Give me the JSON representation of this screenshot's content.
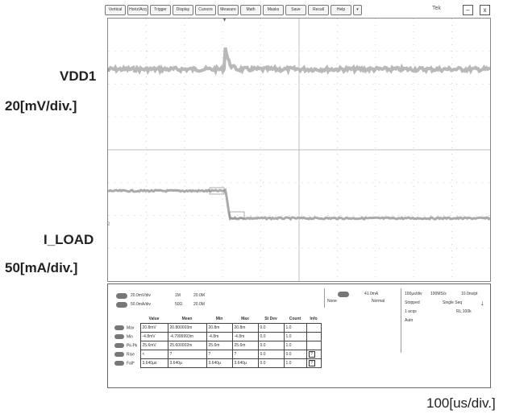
{
  "labels": {
    "ch1_name": "VDD1",
    "ch1_scale": "20[mV/div.]",
    "ch2_name": "I_LOAD",
    "ch2_scale": "50[mA/div.]",
    "time_scale": "100[us/div.]"
  },
  "menubar": {
    "items": [
      "Vertical",
      "Horiz/Acq",
      "Trigger",
      "Display",
      "Cursors",
      "Measure",
      "Math",
      "Masks",
      "Save",
      "Recall",
      "Help"
    ],
    "brand": "Tek"
  },
  "panel": {
    "ch1_settings": "20.0mV/div",
    "ch1_coupling": "1M",
    "ch1_bw": "20.0M",
    "ch2_settings": "50.0mA/div",
    "ch2_coupling": "50Ω",
    "ch2_bw": "20.0M",
    "trigger_level": "41.0mA",
    "trigger_source": "None",
    "trigger_mode": "Normal",
    "timebase": "100µs/div",
    "sample_rate": "100MS/s",
    "resolution": "10.0ns/pt",
    "acq_state": "Stopped",
    "acq_mode": "Single Seq",
    "acqs": "1 acqs",
    "record_length": "RL:100k",
    "auto": "Auto"
  },
  "measurements": {
    "headers": [
      "",
      "Value",
      "Mean",
      "Min",
      "Max",
      "St Dev",
      "Count",
      "Info"
    ],
    "rows": [
      {
        "name": "Max",
        "value": "20.8mV",
        "mean": "20.800003m",
        "min": "20.8m",
        "max": "20.8m",
        "stdev": "0.0",
        "count": "1.0"
      },
      {
        "name": "Min",
        "value": "-4.8mV",
        "mean": "-4.7999993m",
        "min": "-4.8m",
        "max": "-4.8m",
        "stdev": "0.0",
        "count": "1.0"
      },
      {
        "name": "Pk-Pk",
        "value": "25.6mV",
        "mean": "25.600002m",
        "min": "25.6m",
        "max": "25.6m",
        "stdev": "0.0",
        "count": "1.0"
      },
      {
        "name": "Rise",
        "value": "<",
        "mean": "?",
        "min": "?",
        "max": "?",
        "stdev": "0.0",
        "count": "0.0"
      },
      {
        "name": "Fall*",
        "value": "3.640µs",
        "mean": "3.640µ",
        "min": "3.640µ",
        "max": "3.640µ",
        "stdev": "0.0",
        "count": "1.0"
      }
    ]
  },
  "colors": {
    "trace": "#b9b9b9",
    "grid": "#c9c9c9",
    "frame": "#888888"
  }
}
